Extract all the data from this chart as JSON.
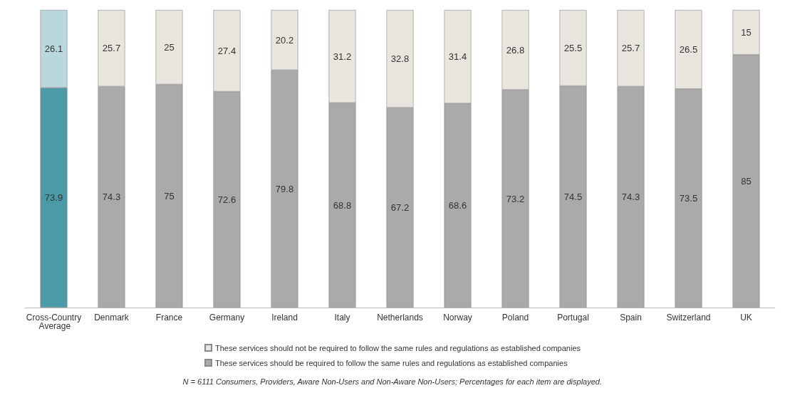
{
  "chart_data": {
    "type": "bar",
    "stacked": true,
    "data_labels": true,
    "legend": "bottom",
    "ylim": [
      0,
      100
    ],
    "categories": [
      "Cross-Country Average",
      "Denmark",
      "France",
      "Germany",
      "Ireland",
      "Italy",
      "Netherlands",
      "Norway",
      "Poland",
      "Portugal",
      "Spain",
      "Switzerland",
      "UK"
    ],
    "series": [
      {
        "name": "These services should be required to follow the same rules and regulations as established companies",
        "color": "#aaaaaa",
        "colors": [
          "#4a9ba5",
          "#aaaaaa",
          "#aaaaaa",
          "#aaaaaa",
          "#aaaaaa",
          "#aaaaaa",
          "#aaaaaa",
          "#aaaaaa",
          "#aaaaaa",
          "#aaaaaa",
          "#aaaaaa",
          "#aaaaaa",
          "#aaaaaa"
        ],
        "values": [
          73.9,
          74.3,
          75,
          72.6,
          79.8,
          68.8,
          67.2,
          68.6,
          73.2,
          74.5,
          74.3,
          73.5,
          85
        ]
      },
      {
        "name": "These services should not be required to follow the same rules and regulations as established companies",
        "color": "#e8e4de",
        "colors": [
          "#b8d8dd",
          "#e8e4de",
          "#e8e4de",
          "#e8e4de",
          "#e8e4de",
          "#e8e4de",
          "#e8e4de",
          "#e8e4de",
          "#e8e4de",
          "#e8e4de",
          "#e8e4de",
          "#e8e4de",
          "#e8e4de"
        ],
        "values": [
          26.1,
          25.7,
          25,
          27.4,
          20.2,
          31.2,
          32.8,
          31.4,
          26.8,
          25.5,
          25.7,
          26.5,
          15
        ]
      }
    ],
    "annotations": [
      "N = 6111 Consumers, Providers, Aware Non-Users and Non-Aware Non-Users; Percentages for each item are displayed."
    ]
  }
}
